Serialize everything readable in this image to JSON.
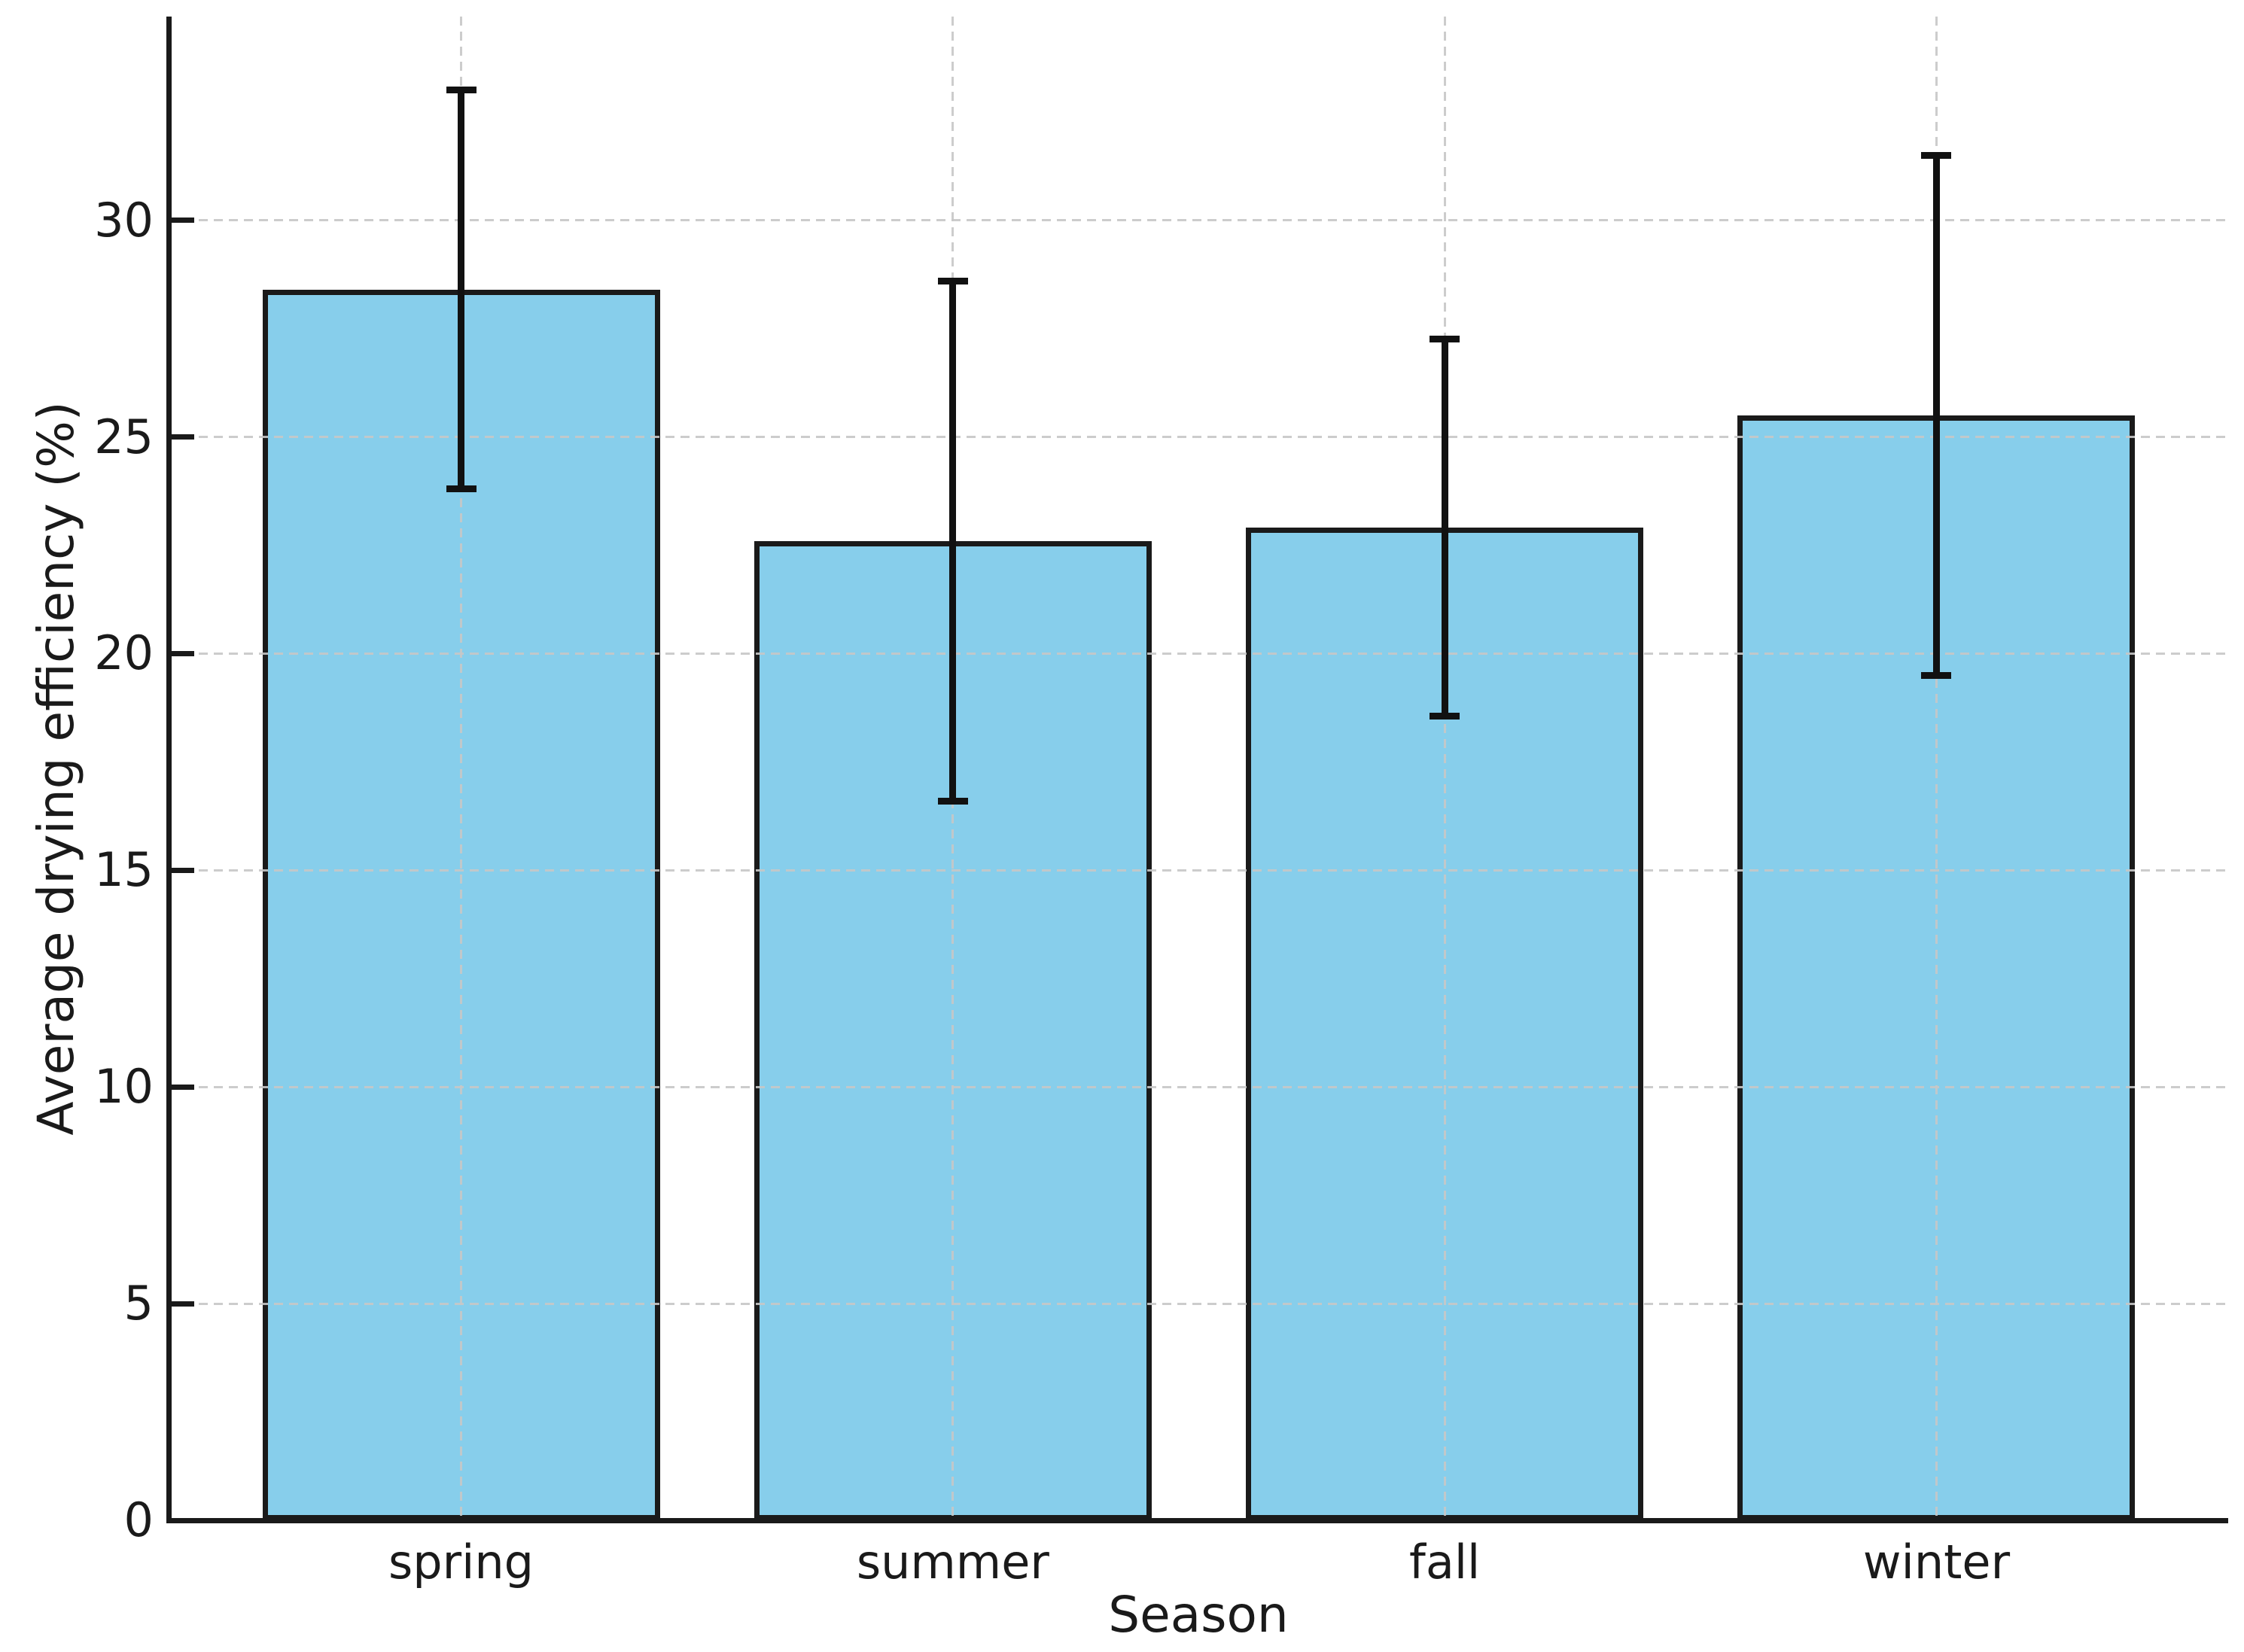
{
  "chart_data": {
    "type": "bar",
    "title": "",
    "xlabel": "Season",
    "ylabel": "Average drying efficiency (%)",
    "categories": [
      "spring",
      "summer",
      "fall",
      "winter"
    ],
    "values": [
      28.4,
      22.6,
      22.9,
      25.5
    ],
    "errors": [
      4.6,
      6.0,
      4.35,
      6.0
    ],
    "yticks": [
      0,
      5,
      10,
      15,
      20,
      25,
      30
    ],
    "ylim": [
      0,
      34.7
    ],
    "grid": "dashed gridlines on both axes, drawn over bars",
    "legend": "none",
    "bar_color": "#87CEEB",
    "bar_edge_color": "#1a1a1a",
    "error_color": "#111111",
    "grid_color": "#c7c7c7",
    "background_color": "#ffffff"
  }
}
